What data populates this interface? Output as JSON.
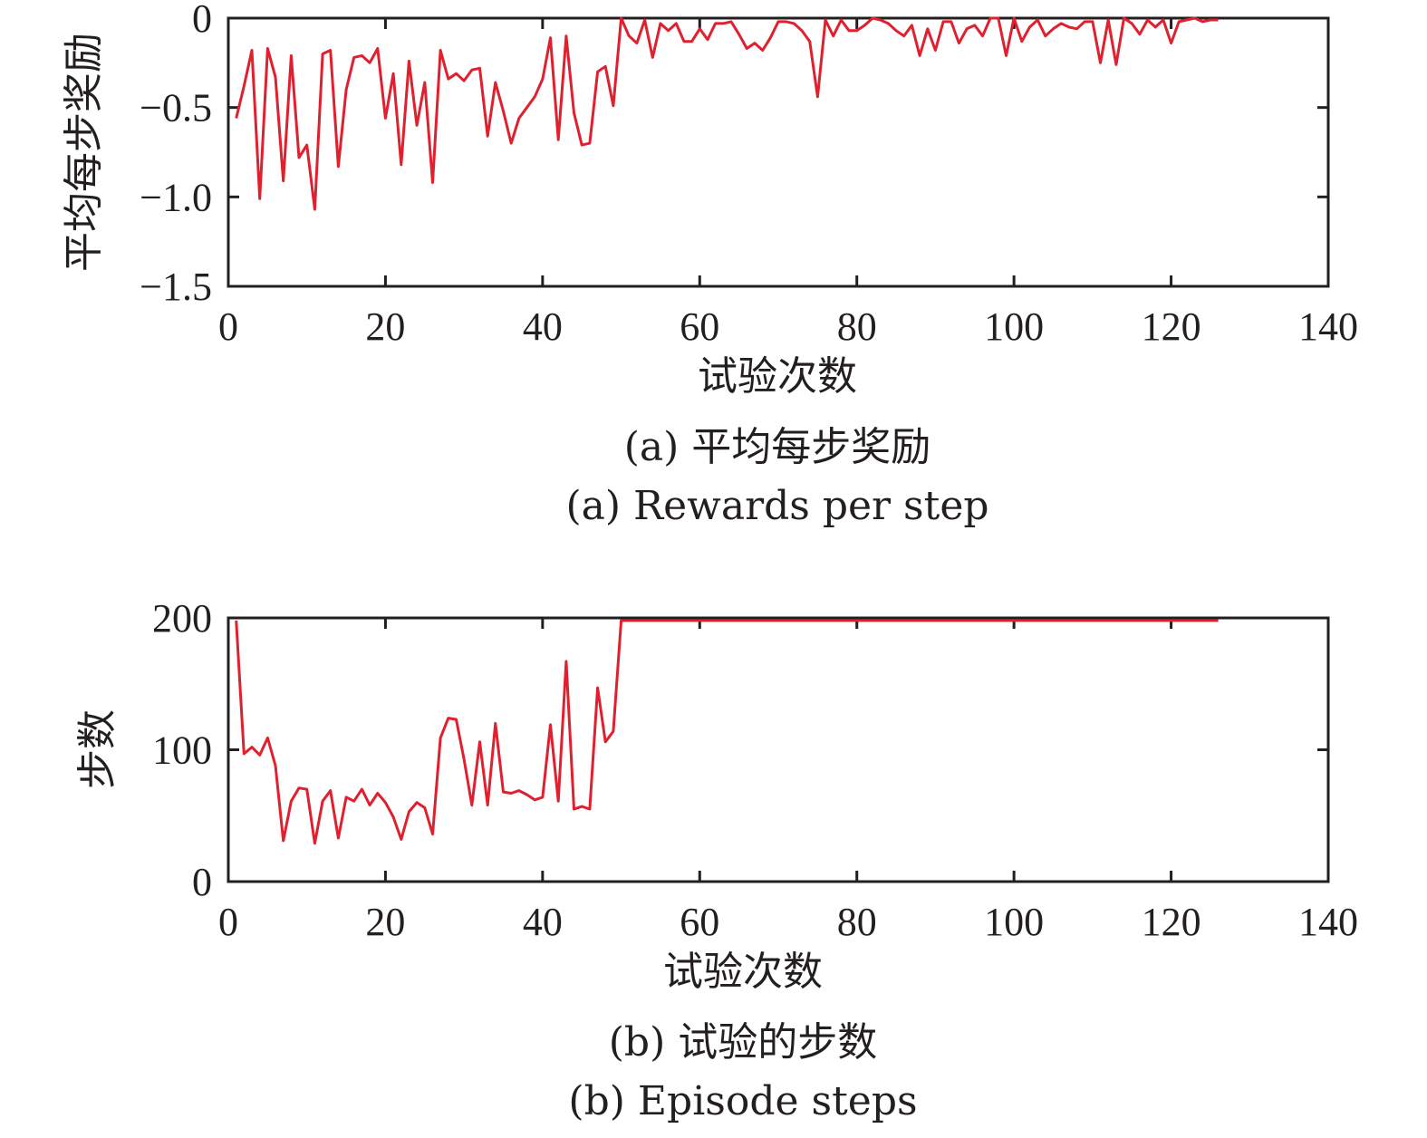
{
  "colors": {
    "series": "#e0202e",
    "axis": "#231f20"
  },
  "chart_data": [
    {
      "type": "line",
      "xlabel": "试验次数",
      "ylabel": "平均每步奖励",
      "caption_cn": "(a) 平均每步奖励",
      "caption_en": "(a) Rewards per step",
      "xlim": [
        0,
        140
      ],
      "ylim": [
        -1.5,
        0
      ],
      "xticks": [
        0,
        20,
        40,
        60,
        80,
        100,
        120,
        140
      ],
      "xtick_labels": [
        "0",
        "20",
        "40",
        "60",
        "80",
        "100",
        "120",
        "140"
      ],
      "yticks": [
        0,
        -0.5,
        -1.0,
        -1.5
      ],
      "ytick_labels": [
        "0",
        "−0.5",
        "−1.0",
        "−1.5"
      ],
      "grid": false,
      "series": [
        {
          "x": [
            1,
            2,
            3,
            4,
            5,
            6,
            7,
            8,
            9,
            10,
            11,
            12,
            13,
            14,
            15,
            16,
            17,
            18,
            19,
            20,
            21,
            22,
            23,
            24,
            25,
            26,
            27,
            28,
            29,
            30,
            31,
            32,
            33,
            34,
            35,
            36,
            37,
            38,
            39,
            40,
            41,
            42,
            43,
            44,
            45,
            46,
            47,
            48,
            49,
            50,
            51,
            52,
            53,
            54,
            55,
            56,
            57,
            58,
            59,
            60,
            61,
            62,
            63,
            64,
            65,
            66,
            67,
            68,
            69,
            70,
            71,
            72,
            73,
            74,
            75,
            76,
            77,
            78,
            79,
            80,
            81,
            82,
            83,
            84,
            85,
            86,
            87,
            88,
            89,
            90,
            91,
            92,
            93,
            94,
            95,
            96,
            97,
            98,
            99,
            100,
            101,
            102,
            103,
            104,
            105,
            106,
            107,
            108,
            109,
            110,
            111,
            112,
            113,
            114,
            115,
            116,
            117,
            118,
            119,
            120,
            121,
            122,
            123,
            124,
            125,
            126
          ],
          "y": [
            -0.56,
            -0.38,
            -0.18,
            -1.01,
            -0.17,
            -0.33,
            -0.91,
            -0.21,
            -0.78,
            -0.71,
            -1.07,
            -0.2,
            -0.18,
            -0.83,
            -0.4,
            -0.22,
            -0.21,
            -0.25,
            -0.17,
            -0.56,
            -0.31,
            -0.82,
            -0.24,
            -0.6,
            -0.36,
            -0.92,
            -0.18,
            -0.34,
            -0.31,
            -0.35,
            -0.29,
            -0.28,
            -0.66,
            -0.36,
            -0.52,
            -0.7,
            -0.56,
            -0.5,
            -0.44,
            -0.34,
            -0.11,
            -0.68,
            -0.1,
            -0.53,
            -0.71,
            -0.7,
            -0.3,
            -0.27,
            -0.49,
            0.0,
            -0.1,
            -0.14,
            -0.01,
            -0.22,
            -0.03,
            -0.07,
            -0.03,
            -0.13,
            -0.13,
            -0.06,
            -0.12,
            -0.03,
            -0.03,
            -0.02,
            -0.09,
            -0.17,
            -0.14,
            -0.18,
            -0.11,
            -0.02,
            -0.02,
            -0.03,
            -0.07,
            -0.13,
            -0.44,
            -0.01,
            -0.1,
            -0.01,
            -0.07,
            -0.07,
            -0.04,
            0.0,
            -0.01,
            -0.03,
            -0.07,
            -0.1,
            -0.04,
            -0.21,
            -0.06,
            -0.18,
            -0.02,
            -0.02,
            -0.14,
            -0.06,
            -0.04,
            -0.1,
            0.0,
            0.0,
            -0.21,
            0.0,
            -0.13,
            -0.05,
            -0.01,
            -0.1,
            -0.06,
            -0.03,
            -0.05,
            -0.06,
            -0.02,
            -0.02,
            -0.25,
            -0.01,
            -0.26,
            0.0,
            -0.03,
            -0.09,
            -0.01,
            -0.05,
            -0.01,
            -0.14,
            -0.02,
            -0.01,
            0.0,
            -0.02,
            -0.01,
            -0.01
          ]
        }
      ]
    },
    {
      "type": "line",
      "xlabel": "试验次数",
      "ylabel": "步数",
      "caption_cn": "(b) 试验的步数",
      "caption_en": "(b) Episode steps",
      "xlim": [
        0,
        140
      ],
      "ylim": [
        0,
        200
      ],
      "xticks": [
        0,
        20,
        40,
        60,
        80,
        100,
        120,
        140
      ],
      "xtick_labels": [
        "0",
        "20",
        "40",
        "60",
        "80",
        "100",
        "120",
        "140"
      ],
      "yticks": [
        0,
        100,
        200
      ],
      "ytick_labels": [
        "0",
        "100",
        "200"
      ],
      "grid": false,
      "series": [
        {
          "x": [
            1,
            2,
            3,
            4,
            5,
            6,
            7,
            8,
            9,
            10,
            11,
            12,
            13,
            14,
            15,
            16,
            17,
            18,
            19,
            20,
            21,
            22,
            23,
            24,
            25,
            26,
            27,
            28,
            29,
            30,
            31,
            32,
            33,
            34,
            35,
            36,
            37,
            38,
            39,
            40,
            41,
            42,
            43,
            44,
            45,
            46,
            47,
            48,
            49,
            50,
            126
          ],
          "y": [
            198,
            97,
            102,
            96,
            109,
            88,
            31,
            61,
            71,
            70,
            29,
            61,
            69,
            33,
            64,
            61,
            70,
            58,
            67,
            60,
            49,
            32,
            53,
            60,
            56,
            36,
            109,
            124,
            123,
            93,
            58,
            106,
            58,
            120,
            68,
            67,
            69,
            66,
            62,
            64,
            119,
            61,
            167,
            55,
            57,
            55,
            147,
            106,
            114,
            198,
            198
          ]
        }
      ]
    }
  ]
}
